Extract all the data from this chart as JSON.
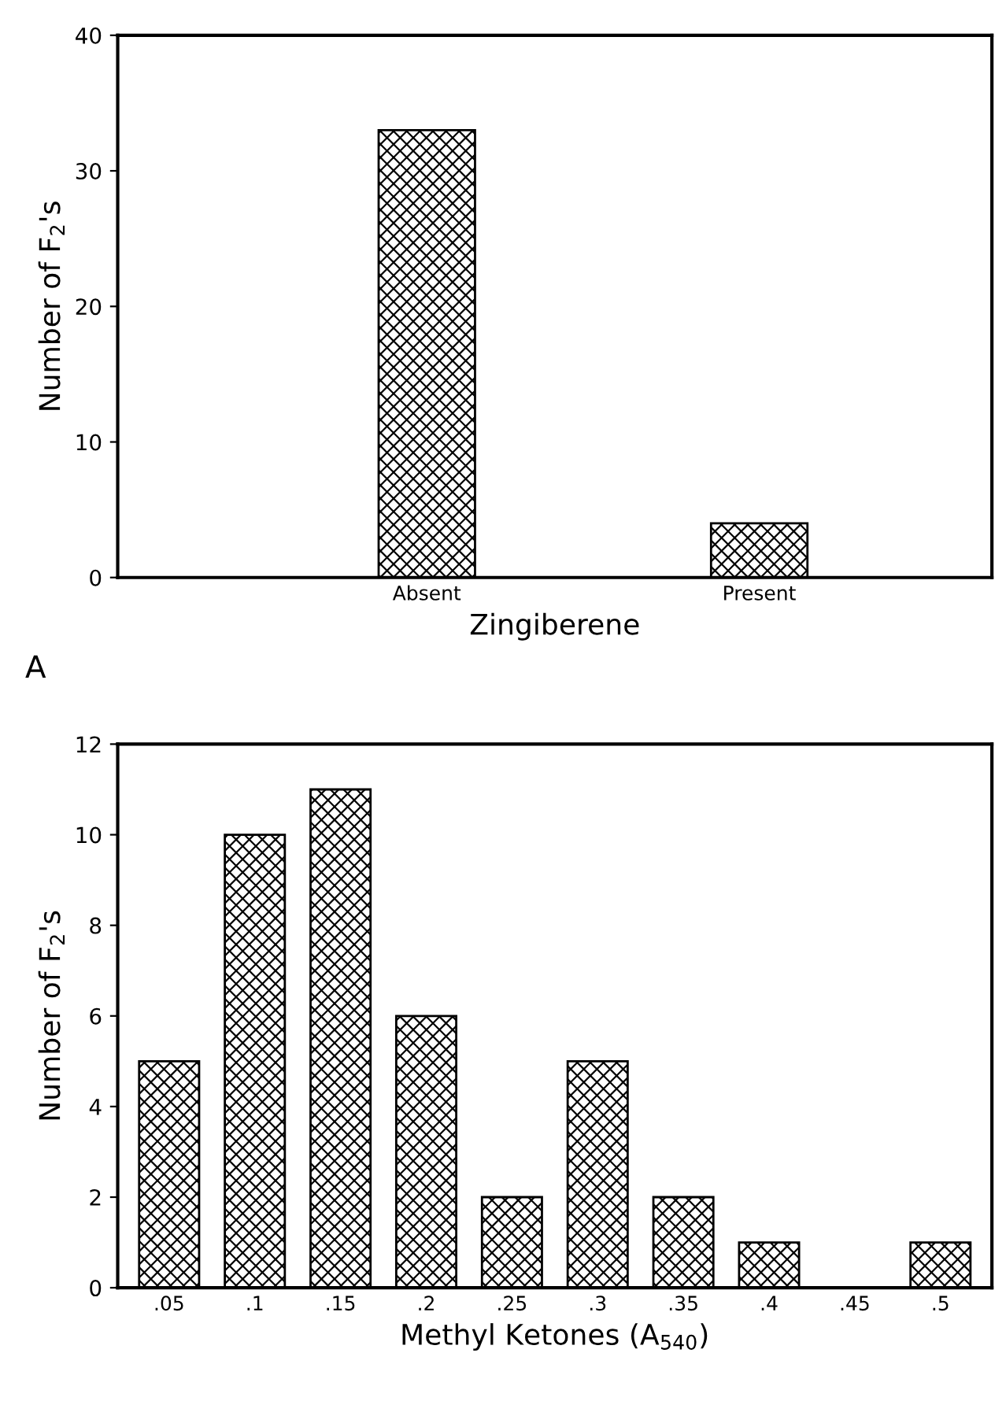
{
  "chart_data": [
    {
      "type": "bar",
      "categories": [
        "Absent",
        "Present"
      ],
      "values": [
        33,
        4
      ],
      "color": "#000000",
      "xlabel": "Zingiberene",
      "ylabel": "Number of F$_{2}$'s",
      "ylim": [
        0,
        40
      ],
      "yticks": [
        0,
        10,
        20,
        30,
        40
      ],
      "grid": false,
      "annotations": [
        "A"
      ]
    },
    {
      "type": "bar",
      "categories": [
        ".05",
        ".1",
        ".15",
        ".2",
        ".25",
        ".3",
        ".35",
        ".4",
        ".45",
        ".5"
      ],
      "values": [
        5,
        10,
        11,
        6,
        2,
        5,
        2,
        1,
        0,
        1
      ],
      "color": "#000000",
      "xlabel": "Methyl Ketones (A$_{540}$)",
      "ylabel": "Number of F$_{2}$'s",
      "ylim": [
        0,
        12
      ],
      "yticks": [
        0,
        2,
        4,
        6,
        8,
        10,
        12
      ],
      "grid": false
    }
  ]
}
